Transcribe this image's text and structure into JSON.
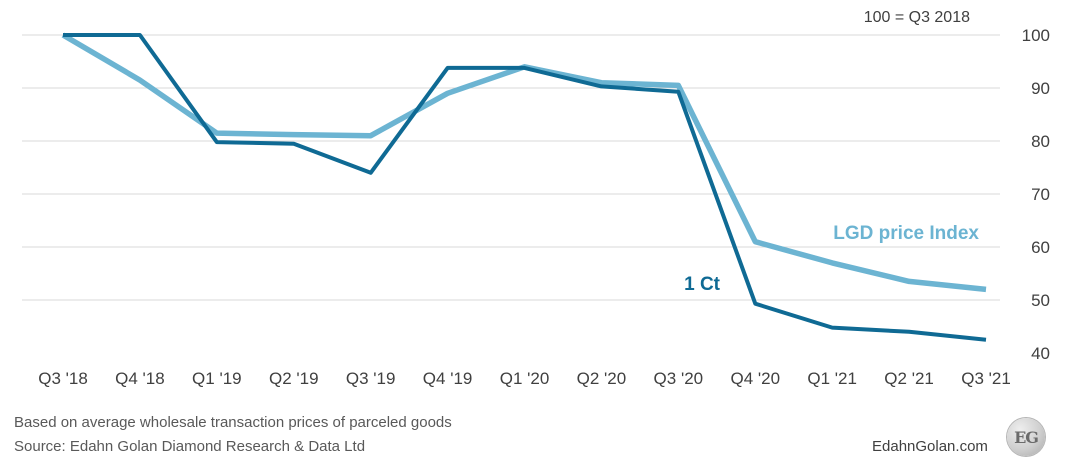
{
  "chart_data": {
    "type": "line",
    "title": "",
    "annotation": "100 = Q3 2018",
    "xlabel": "",
    "ylabel": "",
    "categories": [
      "Q3 '18",
      "Q4 '18",
      "Q1 '19",
      "Q2 '19",
      "Q3 '19",
      "Q4 '19",
      "Q1 '20",
      "Q2 '20",
      "Q3 '20",
      "Q4 '20",
      "Q1 '21",
      "Q2 '21",
      "Q3 '21"
    ],
    "y_ticks": [
      40,
      50,
      60,
      70,
      80,
      90,
      100
    ],
    "ylim": [
      40,
      100
    ],
    "y_axis_side": "right",
    "grid": true,
    "series": [
      {
        "name": "LGD price Index",
        "color": "#6cb4d2",
        "values": [
          100,
          91.5,
          81.5,
          81.2,
          81,
          89,
          94,
          91,
          90.5,
          61,
          57,
          53.5,
          52
        ]
      },
      {
        "name": "1 Ct",
        "color": "#0f6a94",
        "values": [
          100,
          100,
          79.8,
          79.5,
          74,
          93.8,
          93.8,
          90.3,
          89.3,
          49.3,
          44.8,
          44,
          42.5
        ]
      }
    ]
  },
  "footer": {
    "line1": "Based on average wholesale transaction prices of parceled goods",
    "line2": "Source: Edahn Golan Diamond Research & Data Ltd",
    "brand": "EdahnGolan.com",
    "logo_text": "EG"
  }
}
